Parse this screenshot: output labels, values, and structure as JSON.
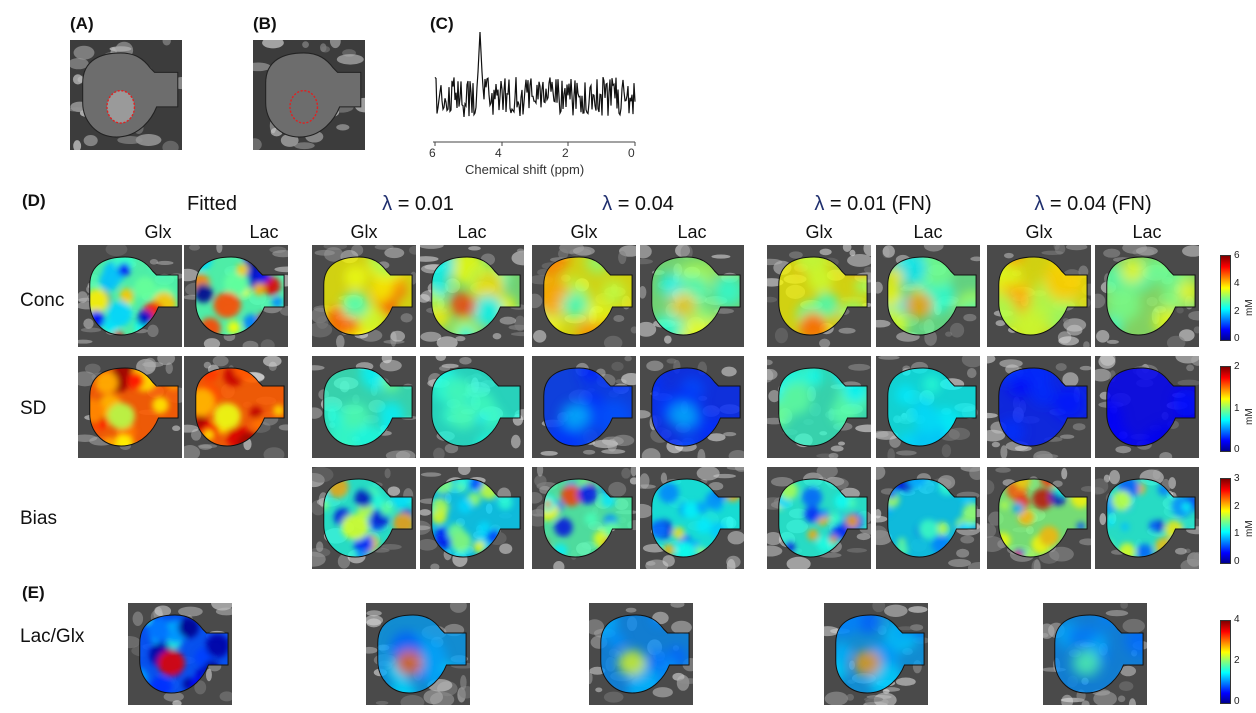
{
  "panels": {
    "a": "(A)",
    "b": "(B)",
    "c": "(C)",
    "d": "(D)",
    "e": "(E)"
  },
  "spectrum": {
    "xlabel": "Chemical shift (ppm)",
    "ticks": [
      "6",
      "4",
      "2",
      "0"
    ]
  },
  "columns": {
    "fitted": "Fitted",
    "lam1": "λ",
    "lam1_val": " = 0.01",
    "lam2": "λ",
    "lam2_val": " = 0.04",
    "lam3": "λ",
    "lam3_val": " = 0.01 (FN)",
    "lam4": "λ",
    "lam4_val": " = 0.04 (FN)",
    "glx": "Glx",
    "lac": "Lac"
  },
  "rows": {
    "conc": "Conc",
    "sd": "SD",
    "bias": "Bias",
    "ratio": "Lac/Glx"
  },
  "colorbars": [
    {
      "max": "6",
      "mid1": "4",
      "mid2": "2",
      "min": "0",
      "unit": "mM"
    },
    {
      "max": "2",
      "mid": "1",
      "min": "0",
      "unit": "mM"
    },
    {
      "max": "3",
      "mid1": "2",
      "mid2": "1",
      "min": "0",
      "unit": "mM"
    },
    {
      "max": "4",
      "mid": "2",
      "min": "0"
    }
  ],
  "colors": {
    "lambda": "#1f2f6e",
    "roi": "#e02020"
  }
}
